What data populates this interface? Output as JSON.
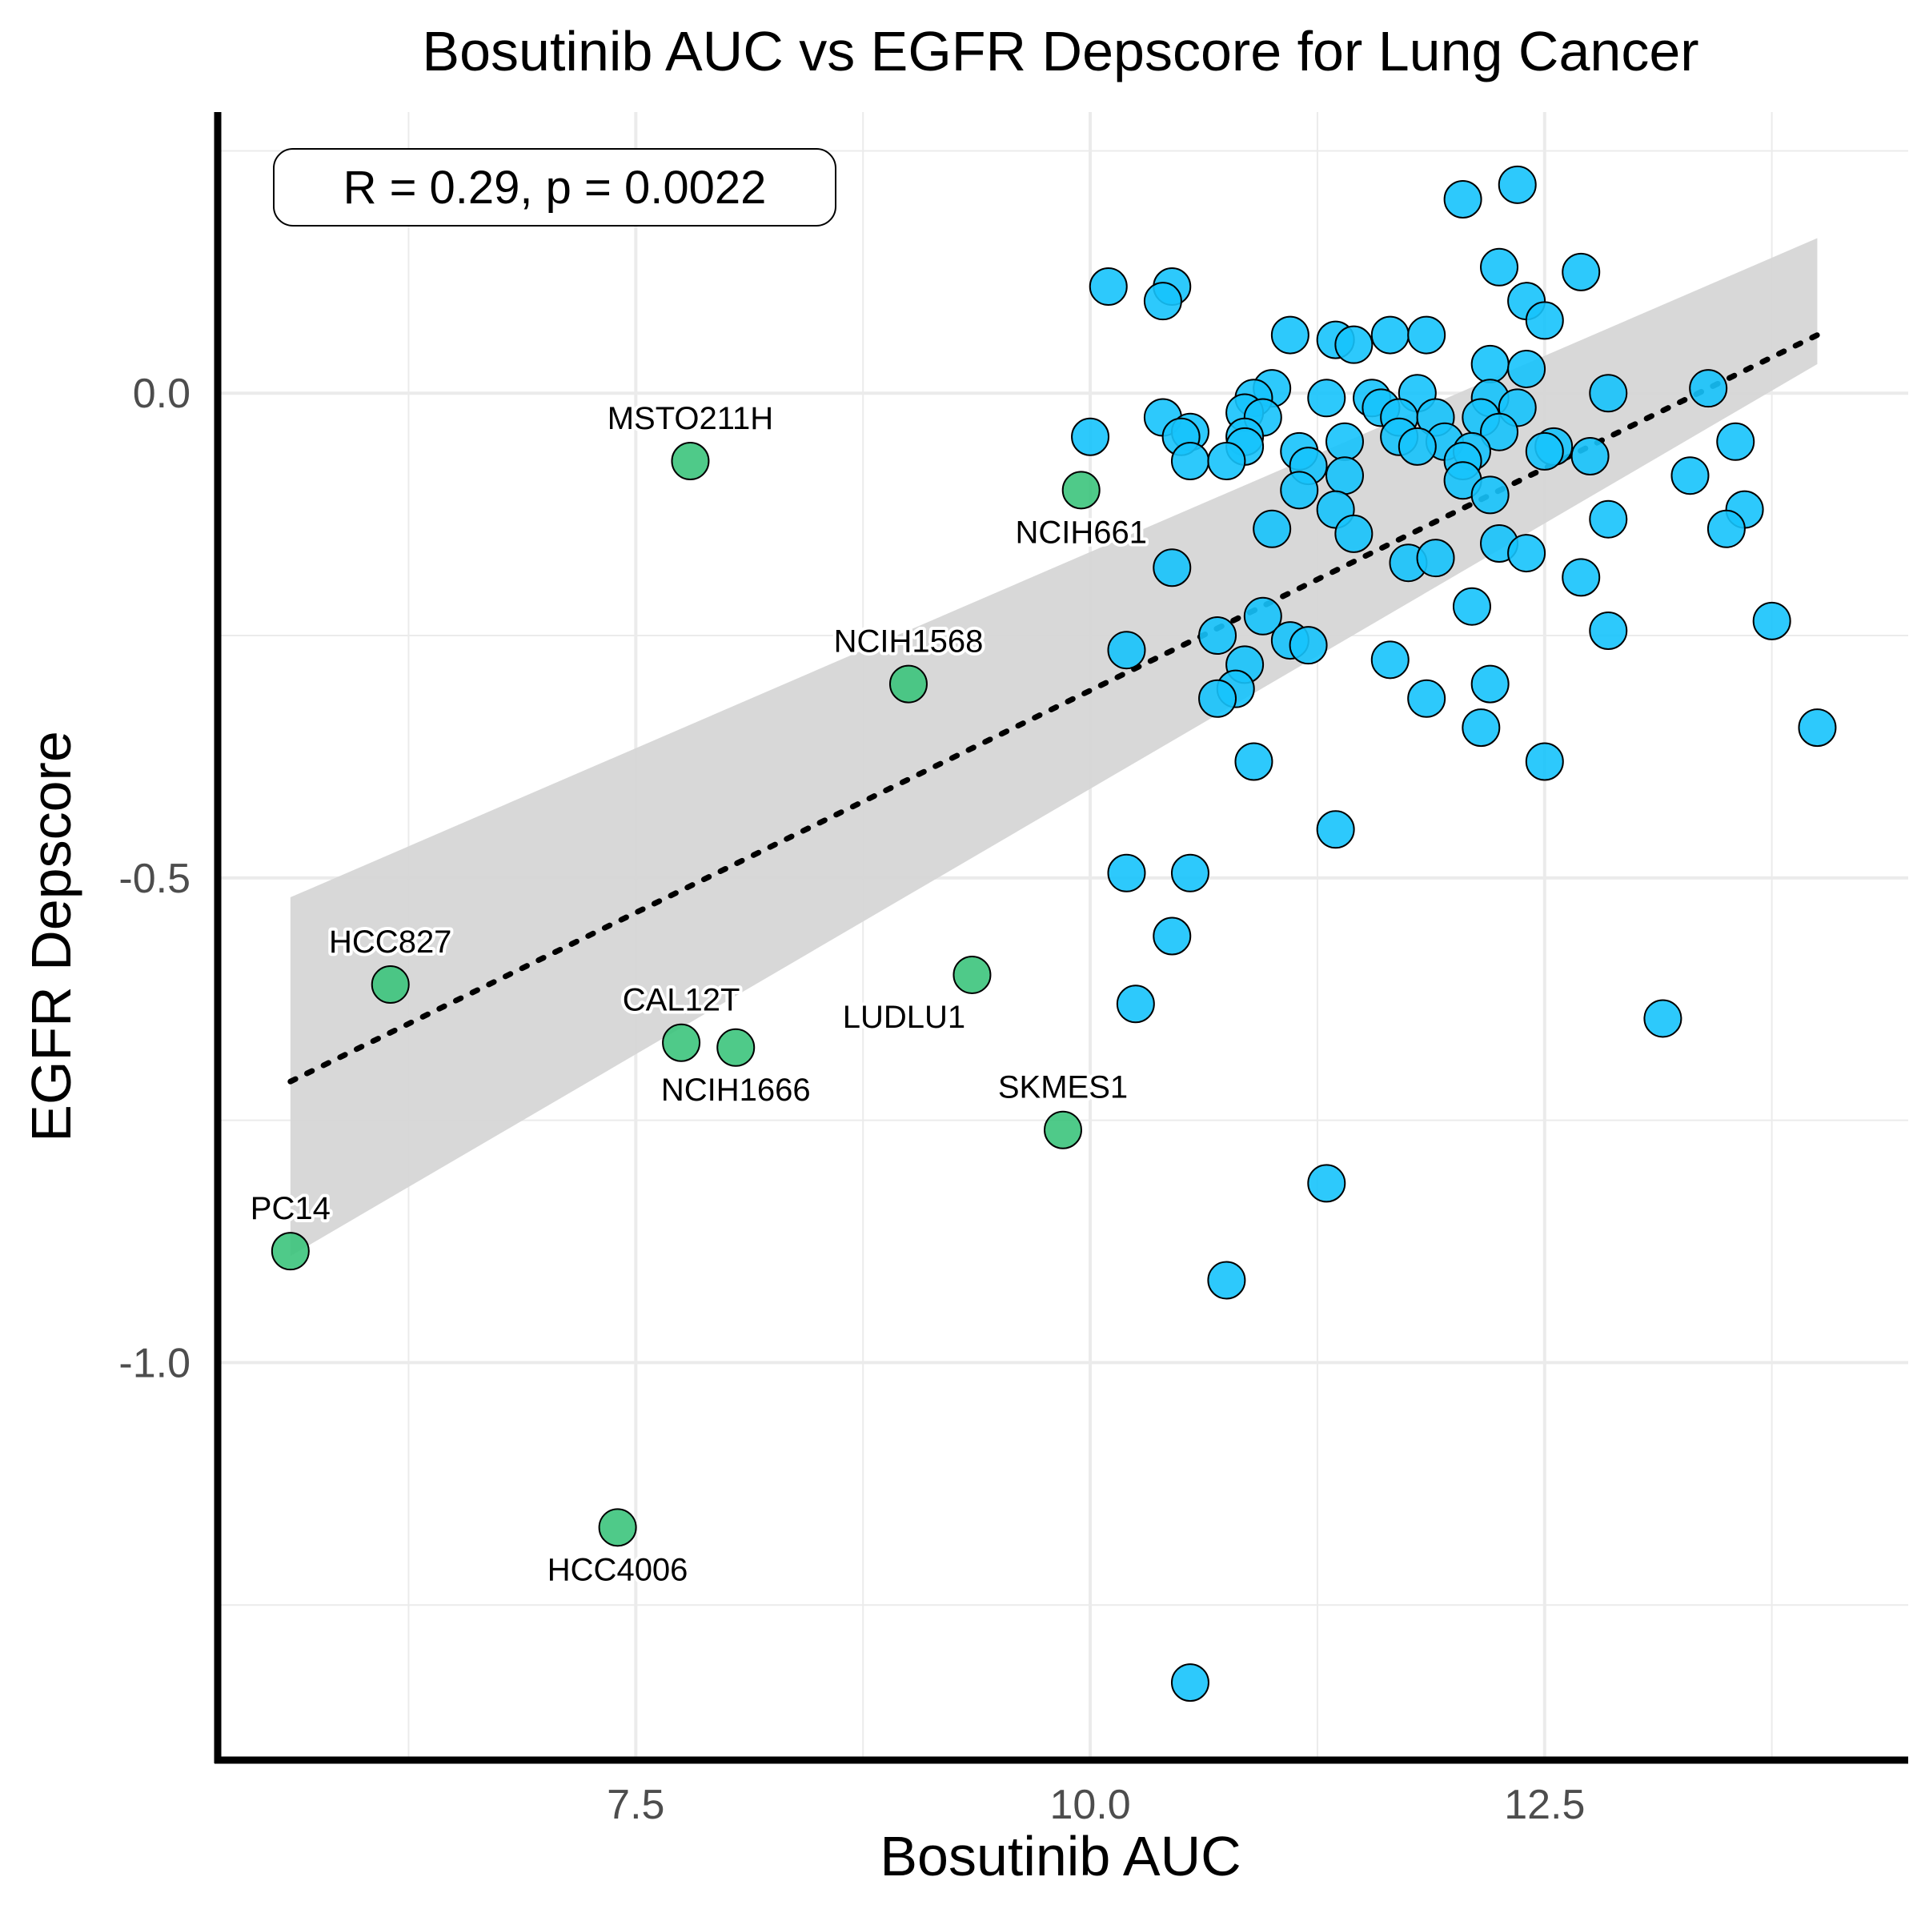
{
  "chart_data": {
    "type": "scatter",
    "title": "Bosutinib AUC vs EGFR Depscore for Lung Cancer",
    "xlabel": "Bosutinib AUC",
    "ylabel": "EGFR Depscore",
    "xlim": [
      5.2,
      14.5
    ],
    "ylim": [
      -1.41,
      0.29
    ],
    "x_ticks": [
      7.5,
      10.0,
      12.5
    ],
    "x_tick_labels": [
      "7.5",
      "10.0",
      "12.5"
    ],
    "y_ticks": [
      0.0,
      -0.5,
      -1.0
    ],
    "y_tick_labels": [
      "0.0",
      "-0.5",
      "-1.0"
    ],
    "grid": true,
    "annotation": "R = 0.29, p = 0.0022",
    "colors": {
      "highlight": "#3cc47c",
      "other": "#16c3fc",
      "outline": "#000000",
      "confidence_band": "#d6d6d6",
      "fit_line": "#000000"
    },
    "regression": {
      "x_range": [
        5.6,
        14.0
      ],
      "y_start": -0.71,
      "y_end": 0.06,
      "ci_start": [
        -0.89,
        -0.52
      ],
      "ci_end": [
        0.03,
        0.16
      ]
    },
    "highlighted": [
      {
        "label": "MSTO211H",
        "x": 7.8,
        "y": -0.07,
        "label_pos": "above"
      },
      {
        "label": "NCIH661",
        "x": 9.95,
        "y": -0.1,
        "label_pos": "below"
      },
      {
        "label": "NCIH1568",
        "x": 9.0,
        "y": -0.3,
        "label_pos": "above"
      },
      {
        "label": "HCC827",
        "x": 6.15,
        "y": -0.61,
        "label_pos": "above"
      },
      {
        "label": "CAL12T",
        "x": 7.75,
        "y": -0.67,
        "label_pos": "above"
      },
      {
        "label": "NCIH1666",
        "x": 8.05,
        "y": -0.675,
        "label_pos": "below"
      },
      {
        "label": "LUDLU1",
        "x": 9.35,
        "y": -0.6,
        "label_pos": "below-left"
      },
      {
        "label": "SKMES1",
        "x": 9.85,
        "y": -0.76,
        "label_pos": "above"
      },
      {
        "label": "PC14",
        "x": 5.6,
        "y": -0.885,
        "label_pos": "above"
      },
      {
        "label": "HCC4006",
        "x": 7.4,
        "y": -1.17,
        "label_pos": "below"
      }
    ],
    "others": [
      [
        12.35,
        0.215
      ],
      [
        12.05,
        0.2
      ],
      [
        12.25,
        0.13
      ],
      [
        12.7,
        0.125
      ],
      [
        10.1,
        0.11
      ],
      [
        10.45,
        0.11
      ],
      [
        10.4,
        0.095
      ],
      [
        12.4,
        0.095
      ],
      [
        12.5,
        0.075
      ],
      [
        11.1,
        0.06
      ],
      [
        11.65,
        0.06
      ],
      [
        11.85,
        0.06
      ],
      [
        11.35,
        0.055
      ],
      [
        11.45,
        0.05
      ],
      [
        12.2,
        0.03
      ],
      [
        12.4,
        0.025
      ],
      [
        11.0,
        0.005
      ],
      [
        10.9,
        -0.005
      ],
      [
        11.3,
        -0.005
      ],
      [
        11.55,
        -0.005
      ],
      [
        11.8,
        0.0
      ],
      [
        12.85,
        0.0
      ],
      [
        13.4,
        0.005
      ],
      [
        11.6,
        -0.015
      ],
      [
        12.2,
        -0.005
      ],
      [
        12.35,
        -0.015
      ],
      [
        10.85,
        -0.02
      ],
      [
        10.95,
        -0.025
      ],
      [
        11.7,
        -0.025
      ],
      [
        11.9,
        -0.025
      ],
      [
        12.15,
        -0.025
      ],
      [
        10.4,
        -0.025
      ],
      [
        10.55,
        -0.04
      ],
      [
        10.5,
        -0.045
      ],
      [
        12.25,
        -0.04
      ],
      [
        10.85,
        -0.045
      ],
      [
        11.4,
        -0.05
      ],
      [
        11.7,
        -0.045
      ],
      [
        11.95,
        -0.05
      ],
      [
        10.0,
        -0.045
      ],
      [
        10.85,
        -0.055
      ],
      [
        11.15,
        -0.06
      ],
      [
        11.8,
        -0.055
      ],
      [
        12.1,
        -0.06
      ],
      [
        12.55,
        -0.055
      ],
      [
        13.55,
        -0.05
      ],
      [
        12.5,
        -0.06
      ],
      [
        12.75,
        -0.065
      ],
      [
        10.55,
        -0.07
      ],
      [
        10.75,
        -0.07
      ],
      [
        11.2,
        -0.075
      ],
      [
        12.05,
        -0.07
      ],
      [
        13.3,
        -0.085
      ],
      [
        11.4,
        -0.085
      ],
      [
        12.05,
        -0.09
      ],
      [
        11.15,
        -0.1
      ],
      [
        12.2,
        -0.105
      ],
      [
        11.35,
        -0.12
      ],
      [
        13.6,
        -0.12
      ],
      [
        12.85,
        -0.13
      ],
      [
        11.0,
        -0.14
      ],
      [
        11.45,
        -0.145
      ],
      [
        13.5,
        -0.14
      ],
      [
        12.25,
        -0.155
      ],
      [
        11.75,
        -0.175
      ],
      [
        11.9,
        -0.17
      ],
      [
        12.4,
        -0.165
      ],
      [
        10.45,
        -0.18
      ],
      [
        12.7,
        -0.19
      ],
      [
        12.1,
        -0.22
      ],
      [
        13.75,
        -0.235
      ],
      [
        10.95,
        -0.23
      ],
      [
        12.85,
        -0.245
      ],
      [
        10.7,
        -0.25
      ],
      [
        11.1,
        -0.255
      ],
      [
        11.2,
        -0.26
      ],
      [
        10.2,
        -0.265
      ],
      [
        10.85,
        -0.28
      ],
      [
        11.65,
        -0.275
      ],
      [
        12.2,
        -0.3
      ],
      [
        10.8,
        -0.305
      ],
      [
        10.7,
        -0.315
      ],
      [
        11.85,
        -0.315
      ],
      [
        12.15,
        -0.345
      ],
      [
        14.0,
        -0.345
      ],
      [
        10.9,
        -0.38
      ],
      [
        12.5,
        -0.38
      ],
      [
        11.35,
        -0.45
      ],
      [
        10.2,
        -0.495
      ],
      [
        10.55,
        -0.495
      ],
      [
        10.45,
        -0.56
      ],
      [
        10.25,
        -0.63
      ],
      [
        13.15,
        -0.645
      ],
      [
        11.3,
        -0.815
      ],
      [
        10.75,
        -0.915
      ],
      [
        10.55,
        -1.33
      ]
    ]
  }
}
